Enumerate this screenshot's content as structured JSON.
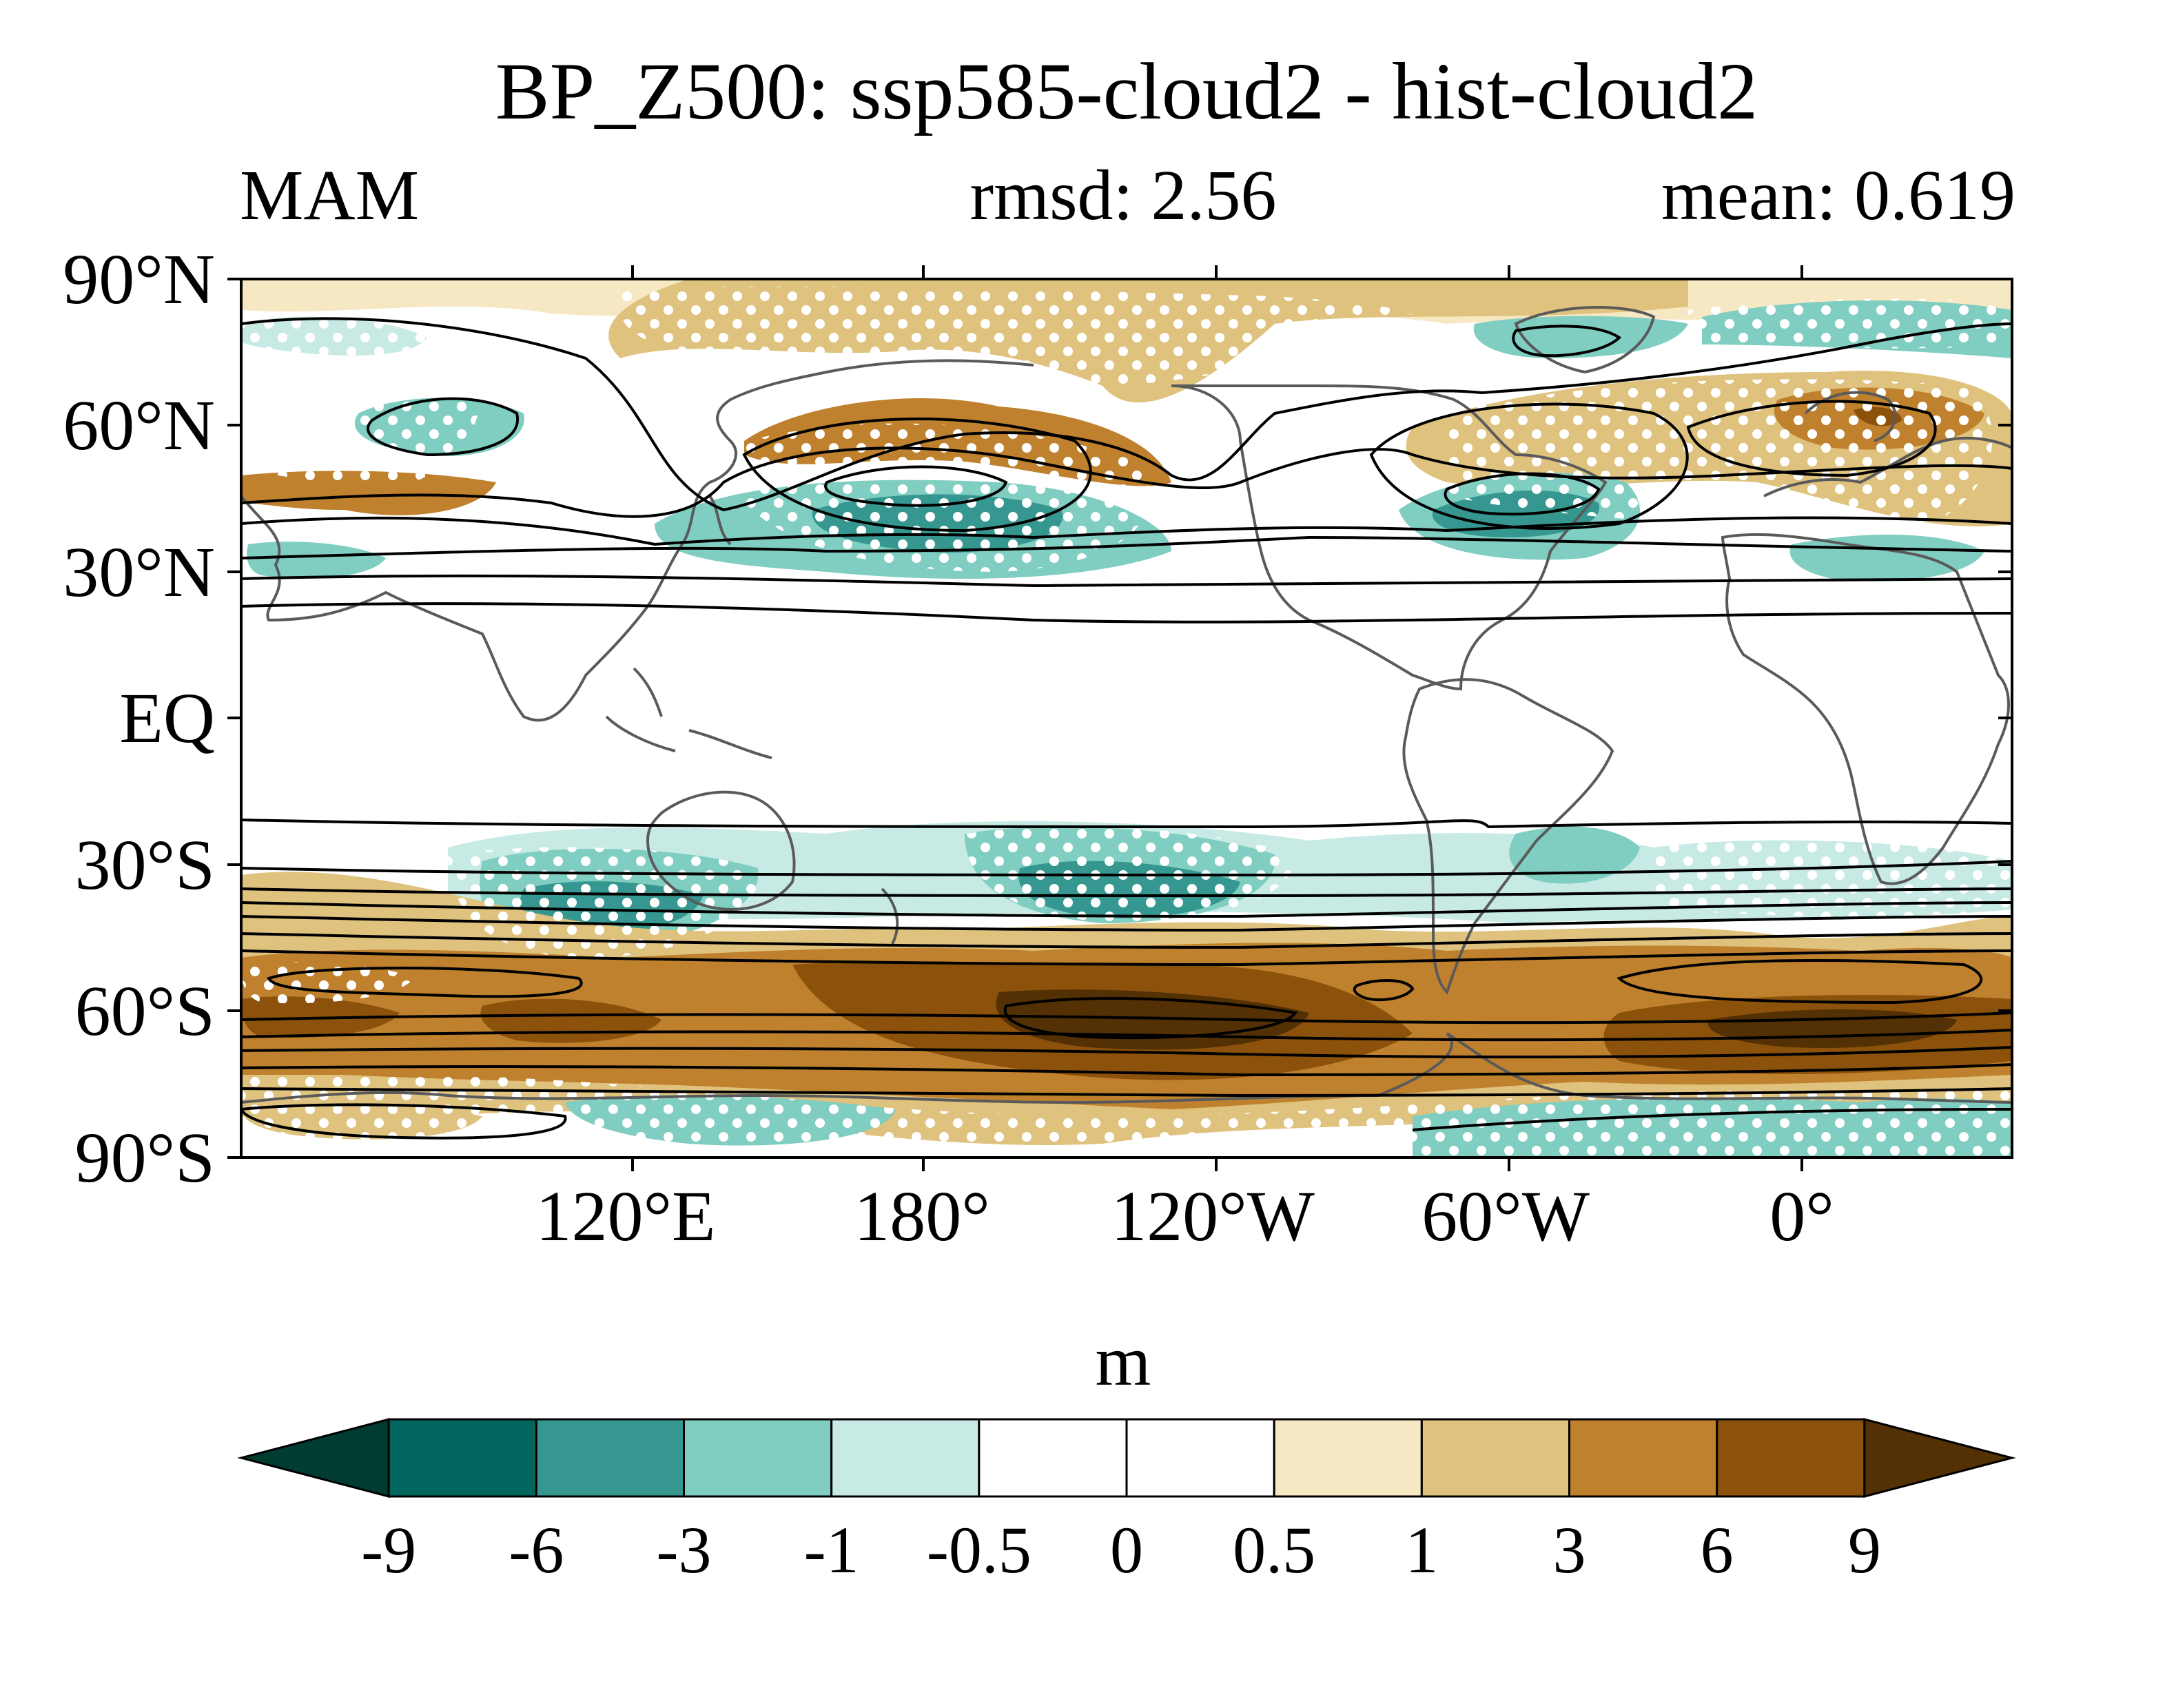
{
  "figure": {
    "title": "BP_Z500: ssp585-cloud2 - hist-cloud2",
    "season": "MAM",
    "rmsd_text": "rmsd: 2.56",
    "mean_text": "mean: 0.619"
  },
  "map": {
    "projection": "cylindrical-equidistant",
    "lat_ticks": [
      "90°N",
      "60°N",
      "30°N",
      "EQ",
      "30°S",
      "60°S",
      "90°S"
    ],
    "lon_ticks": [
      "120°E",
      "180°",
      "120°W",
      "60°W",
      "0°"
    ],
    "stippling": "white dots",
    "contours": "black lines"
  },
  "colorbar": {
    "units": "m",
    "levels": [
      "-9",
      "-6",
      "-3",
      "-1",
      "-0.5",
      "0",
      "0.5",
      "1",
      "3",
      "6",
      "9"
    ],
    "colors": [
      "#003c30",
      "#01665e",
      "#35978f",
      "#80cdc1",
      "#c7eae5",
      "#ffffff",
      "#ffffff",
      "#f6e8c3",
      "#dfc27d",
      "#bf812d",
      "#8c510a",
      "#543005"
    ],
    "extend": "both"
  },
  "colors": {
    "land_outline": "#5a5a5a",
    "contour": "#000000",
    "stipple": "#ffffff"
  }
}
